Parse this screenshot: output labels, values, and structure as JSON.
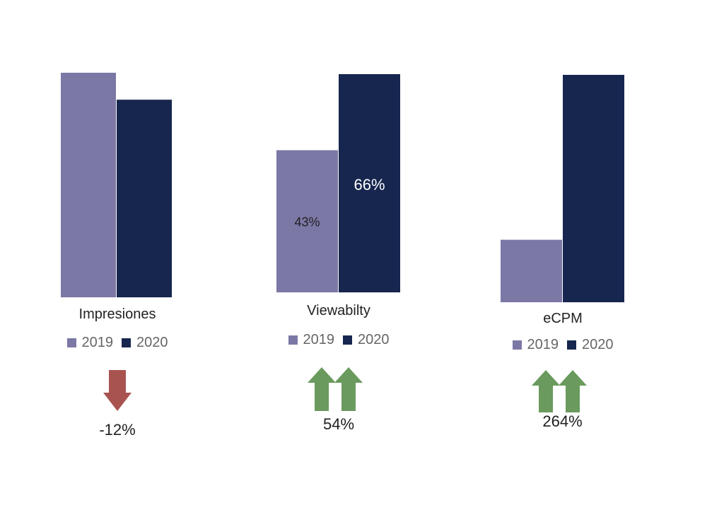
{
  "colors": {
    "y2019": "#7b78a6",
    "y2020": "#16264f",
    "up": "#6a9a5d",
    "down": "#a95350"
  },
  "legend": {
    "a": "2019",
    "b": "2020"
  },
  "panels": [
    {
      "category": "Impresiones",
      "change": {
        "direction": "down",
        "icon": "arrow-down-icon",
        "value": "-12%"
      }
    },
    {
      "category": "Viewabilty",
      "change": {
        "direction": "up",
        "icon": "double-arrow-up-icon",
        "value": "54%"
      }
    },
    {
      "category": "eCPM",
      "change": {
        "direction": "up",
        "icon": "double-arrow-up-icon",
        "value": "264%"
      }
    }
  ],
  "chart_data": [
    {
      "type": "bar",
      "categories": [
        "Impresiones"
      ],
      "series": [
        {
          "name": "2019",
          "values": [
            1.0
          ]
        },
        {
          "name": "2020",
          "values": [
            0.88
          ]
        }
      ],
      "data_labels": [
        "",
        ""
      ],
      "ylim": [
        0,
        1.0
      ],
      "grid": false
    },
    {
      "type": "bar",
      "categories": [
        "Viewabilty"
      ],
      "series": [
        {
          "name": "2019",
          "values": [
            43
          ]
        },
        {
          "name": "2020",
          "values": [
            66
          ]
        }
      ],
      "data_labels": [
        "43%",
        "66%"
      ],
      "ylim": [
        0,
        66
      ],
      "grid": false
    },
    {
      "type": "bar",
      "categories": [
        "eCPM"
      ],
      "series": [
        {
          "name": "2019",
          "values": [
            1.0
          ]
        },
        {
          "name": "2020",
          "values": [
            3.64
          ]
        }
      ],
      "data_labels": [
        "",
        ""
      ],
      "ylim": [
        0,
        3.64
      ],
      "grid": false
    }
  ]
}
